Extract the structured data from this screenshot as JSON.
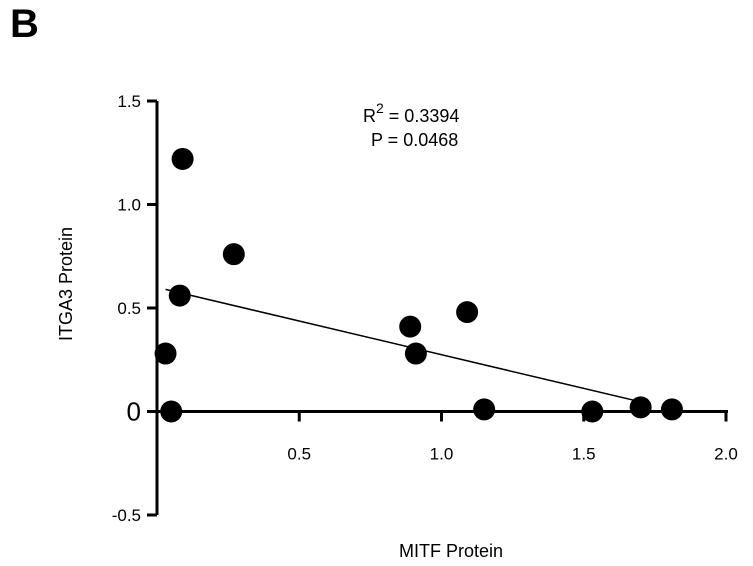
{
  "panel_label": "B",
  "chart_data": {
    "type": "scatter",
    "title": "",
    "xlabel": "MITF Protein",
    "ylabel": "ITGA3 Protein",
    "xlim": [
      0,
      2.0
    ],
    "ylim": [
      -0.5,
      1.5
    ],
    "x_ticks": [
      0.5,
      1.0,
      1.5,
      2.0
    ],
    "x_tick_labels": [
      "0.5",
      "1.0",
      "1.5",
      "2.0"
    ],
    "y_ticks": [
      -0.5,
      0,
      0.5,
      1.0,
      1.5
    ],
    "y_tick_labels": [
      "-0.5",
      "0",
      "0.5",
      "1.0",
      "1.5"
    ],
    "annotation": {
      "r2_prefix": "R",
      "r2_sup": "2",
      "r2_value": " = 0.3394",
      "p_text": "P = 0.0468"
    },
    "points": [
      {
        "x": 0.09,
        "y": 1.22
      },
      {
        "x": 0.27,
        "y": 0.76
      },
      {
        "x": 0.08,
        "y": 0.56
      },
      {
        "x": 0.03,
        "y": 0.28
      },
      {
        "x": 0.05,
        "y": 0.0
      },
      {
        "x": 0.89,
        "y": 0.41
      },
      {
        "x": 0.91,
        "y": 0.28
      },
      {
        "x": 1.09,
        "y": 0.48
      },
      {
        "x": 1.15,
        "y": 0.01
      },
      {
        "x": 1.53,
        "y": 0.0
      },
      {
        "x": 1.7,
        "y": 0.02
      },
      {
        "x": 1.81,
        "y": 0.01
      }
    ],
    "regression_line": {
      "x": [
        0.03,
        1.72
      ],
      "y": [
        0.59,
        0.04
      ]
    },
    "grid": false
  }
}
